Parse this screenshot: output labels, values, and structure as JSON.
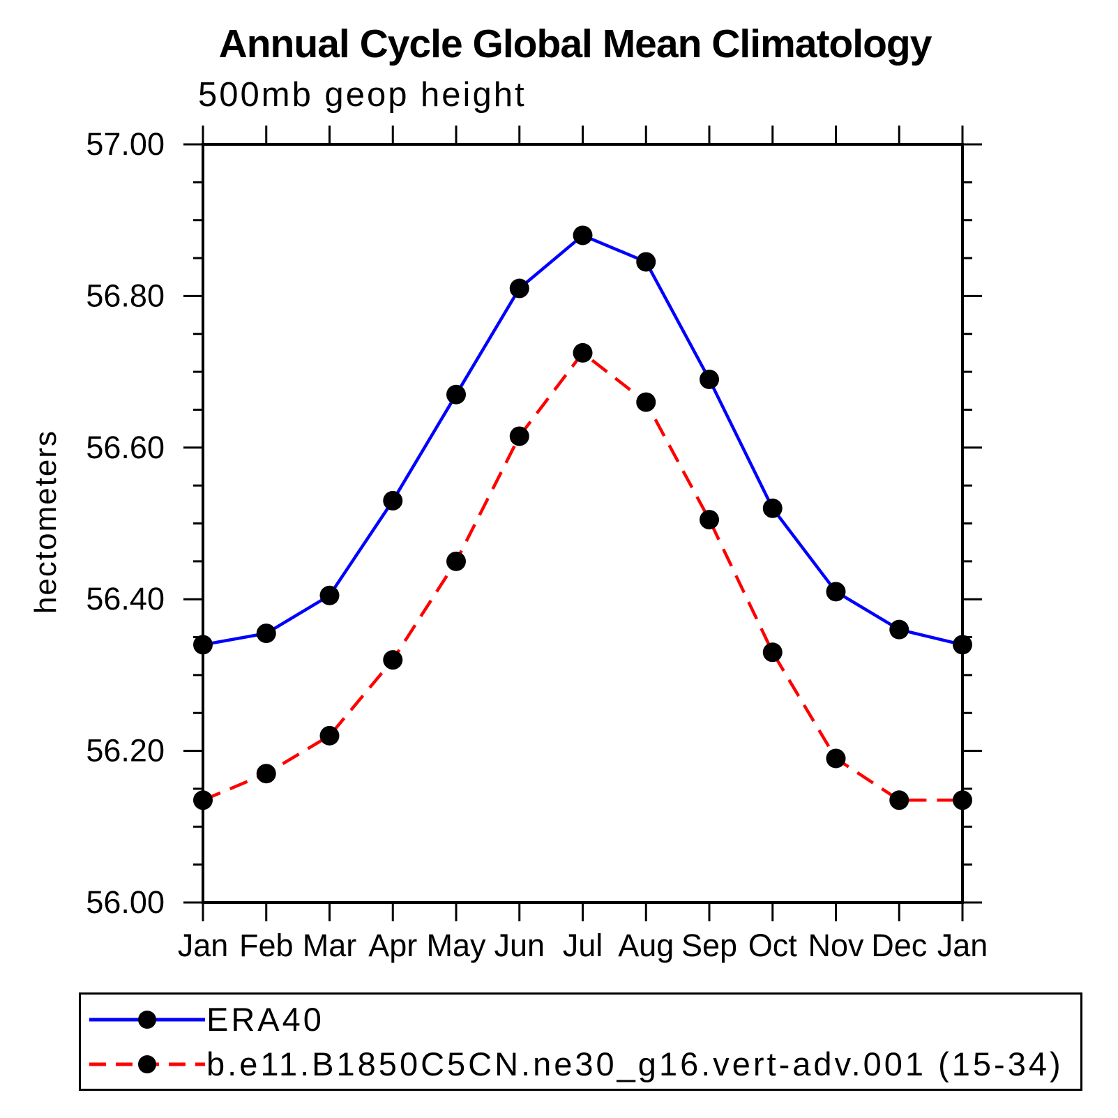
{
  "chart_data": {
    "type": "line",
    "title": "Annual Cycle Global Mean Climatology",
    "subtitle": "500mb geop height",
    "ylabel": "hectometers",
    "xlabel": "",
    "categories": [
      "Jan",
      "Feb",
      "Mar",
      "Apr",
      "May",
      "Jun",
      "Jul",
      "Aug",
      "Sep",
      "Oct",
      "Nov",
      "Dec",
      "Jan"
    ],
    "ylim": [
      56.0,
      57.0
    ],
    "ytick_major_values": [
      57.0,
      56.8,
      56.6,
      56.4,
      56.2,
      56.0
    ],
    "ytick_major_labels": [
      "57.00",
      "56.80",
      "56.60",
      "56.40",
      "56.20",
      "56.00"
    ],
    "ytick_minor_step": 0.05,
    "grid": false,
    "legend_position": "bottom-left-box",
    "axis_color": "#000000",
    "marker_shape": "filled-circle",
    "series": [
      {
        "name": "ERA40",
        "color": "#0000ff",
        "line_style": "solid",
        "marker_color": "#000000",
        "values": [
          56.34,
          56.355,
          56.405,
          56.53,
          56.67,
          56.81,
          56.88,
          56.845,
          56.69,
          56.52,
          56.41,
          56.36,
          56.34
        ]
      },
      {
        "name": "b.e11.B1850C5CN.ne30_g16.vert-adv.001 (15-34)",
        "color": "#ff0000",
        "line_style": "dashed",
        "marker_color": "#000000",
        "values": [
          56.135,
          56.17,
          56.22,
          56.32,
          56.45,
          56.615,
          56.725,
          56.66,
          56.505,
          56.33,
          56.19,
          56.135,
          56.135
        ]
      }
    ]
  }
}
